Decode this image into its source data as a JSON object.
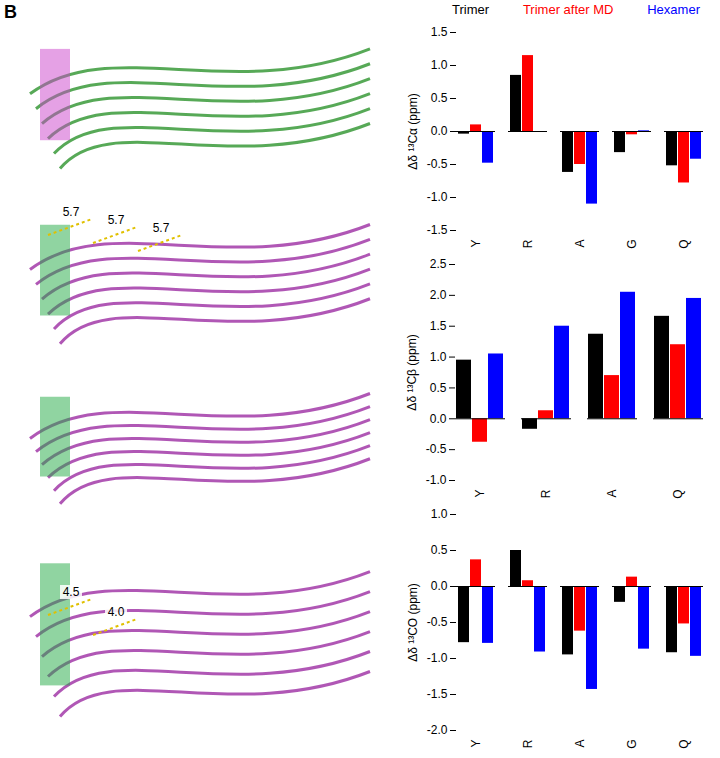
{
  "structure": {
    "panel_label": "B",
    "panels": [
      {
        "distances": []
      },
      {
        "distances": [
          "5.7",
          "5.7",
          "5.7"
        ]
      },
      {
        "distances": []
      },
      {
        "distances": [
          "4.5",
          "4.0"
        ]
      }
    ]
  },
  "chart_data": [
    {
      "type": "bar",
      "y_label": "Δδ ¹³Cα (ppm)",
      "legend": "top",
      "categories": [
        "Y",
        "R",
        "A",
        "G",
        "Q"
      ],
      "series": [
        {
          "name": "Trimer",
          "color": "#000000",
          "values": [
            -0.04,
            0.85,
            -0.62,
            -0.32,
            -0.52
          ]
        },
        {
          "name": "Trimer after MD",
          "color": "#ff0000",
          "values": [
            0.1,
            1.15,
            -0.5,
            -0.05,
            -0.78
          ]
        },
        {
          "name": "Hexamer",
          "color": "#0000ff",
          "values": [
            -0.48,
            null,
            -1.1,
            0.01,
            -0.42
          ]
        }
      ],
      "ylim": [
        -1.5,
        1.5
      ],
      "yticks": [
        {
          "value": -1.5,
          "label": "-1.5"
        },
        {
          "value": -1,
          "label": "-1.0"
        },
        {
          "value": -0.5,
          "label": "-0.5"
        },
        {
          "value": 0,
          "label": "0.0"
        },
        {
          "value": 0.5,
          "label": "0.5"
        },
        {
          "value": 1,
          "label": "1.0"
        },
        {
          "value": 1.5,
          "label": "1.5"
        }
      ]
    },
    {
      "type": "bar",
      "y_label": "Δδ ¹³Cβ (ppm)",
      "categories": [
        "Y",
        "R",
        "A",
        "Q"
      ],
      "series": [
        {
          "name": "Trimer",
          "color": "#000000",
          "values": [
            0.95,
            -0.17,
            1.37,
            1.66
          ]
        },
        {
          "name": "Trimer after MD",
          "color": "#ff0000",
          "values": [
            -0.38,
            0.13,
            0.7,
            1.2
          ]
        },
        {
          "name": "Hexamer",
          "color": "#0000ff",
          "values": [
            1.05,
            1.5,
            2.05,
            1.95
          ]
        }
      ],
      "ylim": [
        -1,
        2.5
      ],
      "yticks": [
        {
          "value": -1,
          "label": "-1.0"
        },
        {
          "value": -0.5,
          "label": "-0.5"
        },
        {
          "value": 0,
          "label": "0.0"
        },
        {
          "value": 0.5,
          "label": "0.5"
        },
        {
          "value": 1,
          "label": "1.0"
        },
        {
          "value": 1.5,
          "label": "1.5"
        },
        {
          "value": 2,
          "label": "2.0"
        },
        {
          "value": 2.5,
          "label": "2.5"
        }
      ]
    },
    {
      "type": "bar",
      "y_label": "Δδ ¹³CO (ppm)",
      "categories": [
        "Y",
        "R",
        "A",
        "G",
        "Q"
      ],
      "series": [
        {
          "name": "Trimer",
          "color": "#000000",
          "values": [
            -0.78,
            0.5,
            -0.95,
            -0.22,
            -0.92
          ]
        },
        {
          "name": "Trimer after MD",
          "color": "#ff0000",
          "values": [
            0.37,
            0.08,
            -0.62,
            0.13,
            -0.52
          ]
        },
        {
          "name": "Hexamer",
          "color": "#0000ff",
          "values": [
            -0.79,
            -0.91,
            -1.43,
            -0.87,
            -0.97
          ]
        }
      ],
      "ylim": [
        -2,
        1
      ],
      "yticks": [
        {
          "value": -2,
          "label": "-2.0"
        },
        {
          "value": -1.5,
          "label": "-1.5"
        },
        {
          "value": -1,
          "label": "-1.0"
        },
        {
          "value": -0.5,
          "label": "-0.5"
        },
        {
          "value": 0,
          "label": "0.0"
        },
        {
          "value": 0.5,
          "label": "0.5"
        },
        {
          "value": 1,
          "label": "1.0"
        }
      ]
    }
  ]
}
